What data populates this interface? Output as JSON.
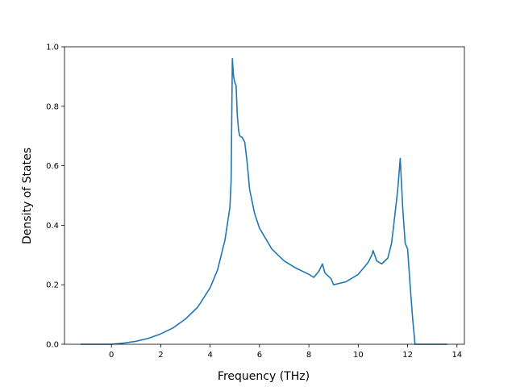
{
  "chart_data": {
    "type": "line",
    "title": "",
    "xlabel": "Frequency (THz)",
    "ylabel": "Density of States",
    "xlim": [
      -1.9,
      14.3
    ],
    "ylim": [
      0.0,
      1.0
    ],
    "grid": false,
    "x_ticks": [
      0,
      2,
      4,
      6,
      8,
      10,
      12,
      14
    ],
    "x_tick_labels": [
      "0",
      "2",
      "4",
      "6",
      "8",
      "10",
      "12",
      "14"
    ],
    "y_ticks": [
      0.0,
      0.2,
      0.4,
      0.6,
      0.8,
      1.0
    ],
    "y_tick_labels": [
      "0.0",
      "0.2",
      "0.4",
      "0.6",
      "0.8",
      "1.0"
    ],
    "series": [
      {
        "color": "#1f77b4",
        "x": [
          -1.25,
          -0.5,
          0.0,
          0.5,
          1.0,
          1.5,
          2.0,
          2.5,
          3.0,
          3.5,
          4.0,
          4.3,
          4.6,
          4.8,
          4.85,
          4.9,
          4.95,
          5.0,
          5.05,
          5.1,
          5.15,
          5.2,
          5.3,
          5.4,
          5.5,
          5.6,
          5.8,
          6.0,
          6.5,
          7.0,
          7.5,
          8.0,
          8.2,
          8.4,
          8.55,
          8.65,
          8.9,
          9.0,
          9.5,
          10.0,
          10.4,
          10.55,
          10.6,
          10.75,
          10.95,
          11.2,
          11.35,
          11.45,
          11.6,
          11.7,
          11.8,
          11.9,
          12.0,
          12.1,
          12.2,
          12.3,
          12.35,
          12.6,
          13.0,
          13.6
        ],
        "y": [
          0.0,
          0.0,
          0.0,
          0.004,
          0.01,
          0.02,
          0.035,
          0.055,
          0.085,
          0.125,
          0.19,
          0.25,
          0.35,
          0.46,
          0.55,
          0.96,
          0.9,
          0.88,
          0.87,
          0.77,
          0.72,
          0.7,
          0.695,
          0.68,
          0.61,
          0.52,
          0.44,
          0.39,
          0.32,
          0.28,
          0.255,
          0.235,
          0.225,
          0.245,
          0.27,
          0.24,
          0.22,
          0.2,
          0.21,
          0.235,
          0.275,
          0.3,
          0.315,
          0.28,
          0.27,
          0.29,
          0.34,
          0.41,
          0.52,
          0.625,
          0.46,
          0.34,
          0.32,
          0.2,
          0.09,
          0.0,
          0.0,
          0.0,
          0.0,
          0.0
        ]
      }
    ]
  }
}
